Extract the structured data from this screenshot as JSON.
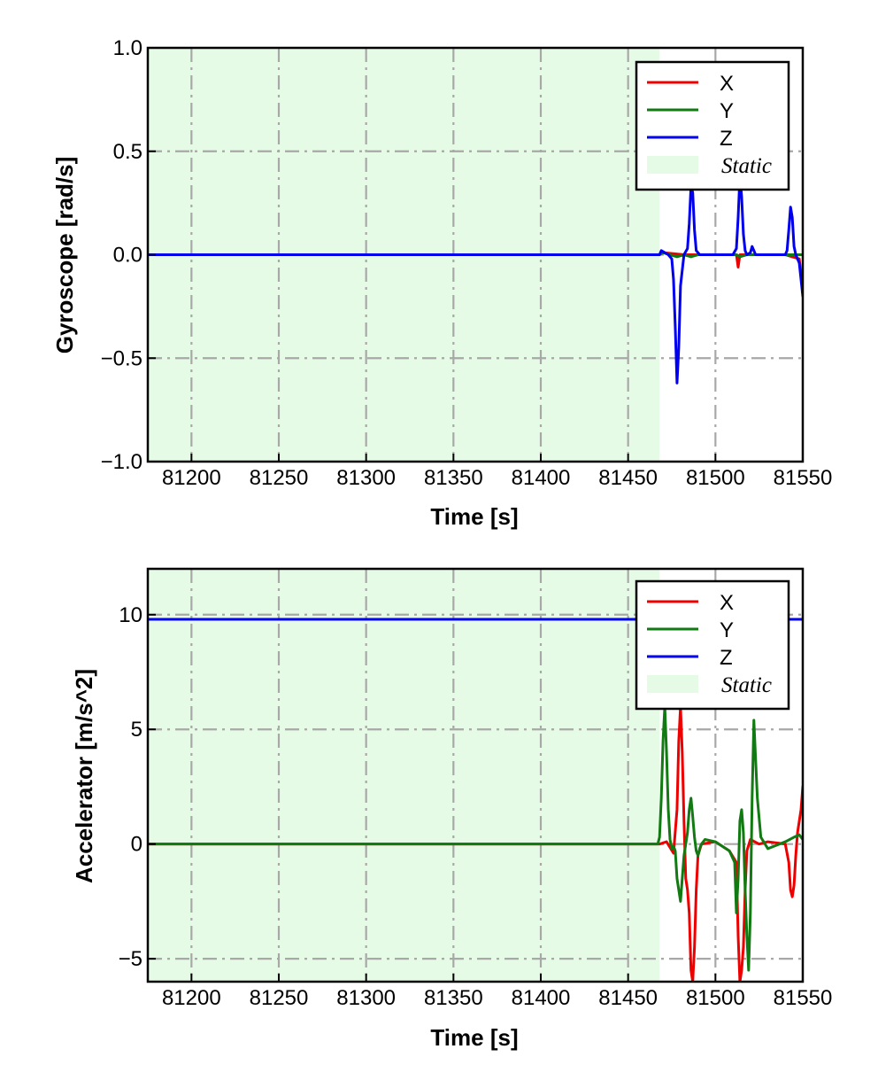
{
  "colors": {
    "X": "#ee0000",
    "Y": "#127a12",
    "Z": "#0000ee",
    "static_fill": "#e6fbe6",
    "grid": "#a8a8a8"
  },
  "chart_data": [
    {
      "type": "line",
      "name": "gyroscope",
      "xlabel": "Time [s]",
      "ylabel": "Gyroscope [rad/s]",
      "xlim": [
        81175,
        81550
      ],
      "ylim": [
        -1.0,
        1.0
      ],
      "xticks": [
        81200,
        81250,
        81300,
        81350,
        81400,
        81450,
        81500,
        81550
      ],
      "xtick_labels": [
        "81200",
        "81250",
        "81300",
        "81350",
        "81400",
        "81450",
        "81500",
        "81550"
      ],
      "yticks": [
        1.0,
        0.5,
        0.0,
        -0.5,
        -1.0
      ],
      "ytick_labels": [
        "1.0",
        "0.5",
        "0.0",
        "−0.5",
        "−1.0"
      ],
      "grid": true,
      "legend_position": "top-right",
      "legend": [
        {
          "label": "X",
          "kind": "line",
          "color_key": "X"
        },
        {
          "label": "Y",
          "kind": "line",
          "color_key": "Y"
        },
        {
          "label": "Z",
          "kind": "line",
          "color_key": "Z"
        },
        {
          "label": "Static",
          "kind": "patch",
          "color_key": "static_fill"
        }
      ],
      "static_span": [
        81175,
        81468
      ],
      "series": [
        {
          "name": "X",
          "color_key": "X",
          "x": [
            81175,
            81468,
            81470,
            81482,
            81500,
            81512,
            81513,
            81514,
            81516,
            81540,
            81548,
            81550
          ],
          "y": [
            0.0,
            0.0,
            0.01,
            0.0,
            0.0,
            0.0,
            -0.06,
            0.0,
            0.0,
            0.0,
            -0.02,
            -0.17
          ]
        },
        {
          "name": "Y",
          "color_key": "Y",
          "x": [
            81175,
            81468,
            81470,
            81478,
            81482,
            81486,
            81490,
            81512,
            81514,
            81518,
            81550
          ],
          "y": [
            0.0,
            0.0,
            0.01,
            -0.01,
            0.0,
            -0.01,
            0.0,
            0.0,
            -0.01,
            0.0,
            0.0
          ]
        },
        {
          "name": "Z",
          "color_key": "Z",
          "x": [
            81175,
            81468,
            81469,
            81471,
            81473,
            81475,
            81476,
            81477,
            81478,
            81479,
            81480,
            81482,
            81484,
            81485,
            81486,
            81487,
            81488,
            81489,
            81491,
            81510,
            81512,
            81513,
            81514,
            81515,
            81516,
            81517,
            81518,
            81520,
            81521,
            81522,
            81523,
            81525,
            81540,
            81541,
            81542,
            81543,
            81544,
            81545,
            81546,
            81547,
            81548,
            81549,
            81550
          ],
          "y": [
            0.0,
            0.0,
            0.02,
            0.01,
            0.0,
            -0.02,
            -0.12,
            -0.35,
            -0.62,
            -0.45,
            -0.15,
            0.0,
            0.03,
            0.15,
            0.33,
            0.3,
            0.12,
            0.02,
            0.0,
            0.0,
            0.03,
            0.18,
            0.38,
            0.28,
            0.1,
            0.02,
            0.0,
            0.01,
            0.04,
            0.02,
            0.0,
            0.0,
            0.0,
            0.02,
            0.12,
            0.23,
            0.18,
            0.04,
            0.0,
            -0.02,
            -0.04,
            -0.12,
            -0.2
          ]
        }
      ]
    },
    {
      "type": "line",
      "name": "accelerometer",
      "xlabel": "Time [s]",
      "ylabel": "Accelerator [m/s^2]",
      "xlim": [
        81175,
        81550
      ],
      "ylim": [
        -6.0,
        12.0
      ],
      "xticks": [
        81200,
        81250,
        81300,
        81350,
        81400,
        81450,
        81500,
        81550
      ],
      "xtick_labels": [
        "81200",
        "81250",
        "81300",
        "81350",
        "81400",
        "81450",
        "81500",
        "81550"
      ],
      "yticks": [
        10,
        5,
        0,
        -5
      ],
      "ytick_labels": [
        "10",
        "5",
        "0",
        "−5"
      ],
      "grid": true,
      "legend_position": "top-right",
      "legend": [
        {
          "label": "X",
          "kind": "line",
          "color_key": "X"
        },
        {
          "label": "Y",
          "kind": "line",
          "color_key": "Y"
        },
        {
          "label": "Z",
          "kind": "line",
          "color_key": "Z"
        },
        {
          "label": "Static",
          "kind": "patch",
          "color_key": "static_fill"
        }
      ],
      "static_span": [
        81175,
        81468
      ],
      "series": [
        {
          "name": "Z",
          "color_key": "Z",
          "x": [
            81175,
            81550
          ],
          "y": [
            9.8,
            9.8
          ]
        },
        {
          "name": "X",
          "color_key": "X",
          "x": [
            81175,
            81468,
            81472,
            81476,
            81478,
            81479,
            81480,
            81481,
            81482,
            81483,
            81484,
            81485,
            81486,
            81487,
            81488,
            81489,
            81490,
            81492,
            81500,
            81508,
            81512,
            81513,
            81514,
            81515,
            81516,
            81517,
            81518,
            81520,
            81525,
            81530,
            81540,
            81542,
            81543,
            81544,
            81545,
            81546,
            81547,
            81548,
            81549,
            81550
          ],
          "y": [
            0.0,
            0.0,
            0.1,
            -0.4,
            1.5,
            4.5,
            6.0,
            4.0,
            1.0,
            -1.5,
            -2.0,
            -3.0,
            -5.5,
            -6.0,
            -4.5,
            -2.0,
            -0.5,
            0.0,
            0.1,
            -0.3,
            -0.8,
            -4.0,
            -6.0,
            -5.5,
            -4.5,
            -2.0,
            -0.3,
            0.2,
            0.0,
            0.1,
            0.0,
            -0.8,
            -2.0,
            -2.3,
            -1.8,
            -0.5,
            0.5,
            1.0,
            1.5,
            2.5
          ]
        },
        {
          "name": "Y",
          "color_key": "Y",
          "x": [
            81175,
            81467,
            81468,
            81469,
            81470,
            81471,
            81472,
            81473,
            81474,
            81475,
            81476,
            81477,
            81478,
            81480,
            81482,
            81484,
            81485,
            81486,
            81487,
            81488,
            81489,
            81490,
            81491,
            81492,
            81494,
            81500,
            81508,
            81511,
            81512,
            81513,
            81514,
            81515,
            81516,
            81517,
            81518,
            81519,
            81520,
            81521,
            81522,
            81524,
            81526,
            81530,
            81540,
            81545,
            81548,
            81550
          ],
          "y": [
            0.0,
            0.0,
            0.3,
            2.0,
            4.5,
            6.0,
            4.0,
            1.5,
            0.2,
            -0.2,
            -0.1,
            -0.3,
            -1.5,
            -2.5,
            -0.5,
            0.5,
            1.5,
            2.0,
            1.2,
            0.3,
            -0.3,
            -0.5,
            -0.2,
            0.0,
            0.2,
            0.1,
            -0.3,
            -0.8,
            -3.0,
            -1.5,
            1.0,
            1.5,
            0.5,
            -2.0,
            -4.0,
            -5.5,
            -3.0,
            2.0,
            5.4,
            2.0,
            0.3,
            -0.2,
            0.1,
            0.3,
            0.4,
            0.2
          ]
        }
      ]
    }
  ]
}
